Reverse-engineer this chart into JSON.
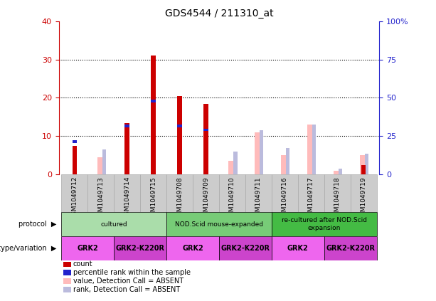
{
  "title": "GDS4544 / 211310_at",
  "samples": [
    "GSM1049712",
    "GSM1049713",
    "GSM1049714",
    "GSM1049715",
    "GSM1049708",
    "GSM1049709",
    "GSM1049710",
    "GSM1049711",
    "GSM1049716",
    "GSM1049717",
    "GSM1049718",
    "GSM1049719"
  ],
  "red_bars": [
    7.5,
    0,
    13.5,
    31.0,
    20.5,
    18.5,
    0,
    0,
    0,
    0,
    0,
    2.5
  ],
  "blue_bars": [
    9.0,
    0,
    13.0,
    19.5,
    13.0,
    12.0,
    0,
    0,
    0,
    0,
    0,
    0
  ],
  "pink_bars": [
    0,
    4.5,
    0,
    0,
    0,
    0,
    3.5,
    11.0,
    5.0,
    13.0,
    1.0,
    5.0
  ],
  "lightblue_bars": [
    0,
    6.5,
    0,
    0,
    0,
    0,
    6.0,
    11.5,
    7.0,
    13.0,
    1.5,
    5.5
  ],
  "ylim_left": [
    0,
    40
  ],
  "ylim_right": [
    0,
    100
  ],
  "yticks_left": [
    0,
    10,
    20,
    30,
    40
  ],
  "yticks_right": [
    0,
    25,
    50,
    75,
    100
  ],
  "ytick_labels_right": [
    "0",
    "25",
    "50",
    "75",
    "100%"
  ],
  "protocol_data": [
    {
      "start": 0,
      "end": 3,
      "label": "cultured",
      "color": "#aaddaa"
    },
    {
      "start": 4,
      "end": 7,
      "label": "NOD.Scid mouse-expanded",
      "color": "#77cc77"
    },
    {
      "start": 8,
      "end": 11,
      "label": "re-cultured after NOD.Scid\nexpansion",
      "color": "#44bb44"
    }
  ],
  "genotype_data": [
    {
      "start": 0,
      "end": 1,
      "label": "GRK2",
      "color": "#ee66ee"
    },
    {
      "start": 2,
      "end": 3,
      "label": "GRK2-K220R",
      "color": "#cc44cc"
    },
    {
      "start": 4,
      "end": 5,
      "label": "GRK2",
      "color": "#ee66ee"
    },
    {
      "start": 6,
      "end": 7,
      "label": "GRK2-K220R",
      "color": "#cc44cc"
    },
    {
      "start": 8,
      "end": 9,
      "label": "GRK2",
      "color": "#ee66ee"
    },
    {
      "start": 10,
      "end": 11,
      "label": "GRK2-K220R",
      "color": "#cc44cc"
    }
  ],
  "legend_items": [
    {
      "label": "count",
      "color": "#cc0000"
    },
    {
      "label": "percentile rank within the sample",
      "color": "#2222cc"
    },
    {
      "label": "value, Detection Call = ABSENT",
      "color": "#ffbbbb"
    },
    {
      "label": "rank, Detection Call = ABSENT",
      "color": "#bbbbff"
    }
  ],
  "red_color": "#cc0000",
  "blue_color": "#2222cc",
  "pink_color": "#ffbbbb",
  "lightblue_color": "#bbbbdd",
  "bg_color": "#ffffff",
  "left_tick_color": "#cc0000",
  "right_tick_color": "#2222cc",
  "xtick_bg": "#cccccc",
  "xtick_border": "#aaaaaa"
}
